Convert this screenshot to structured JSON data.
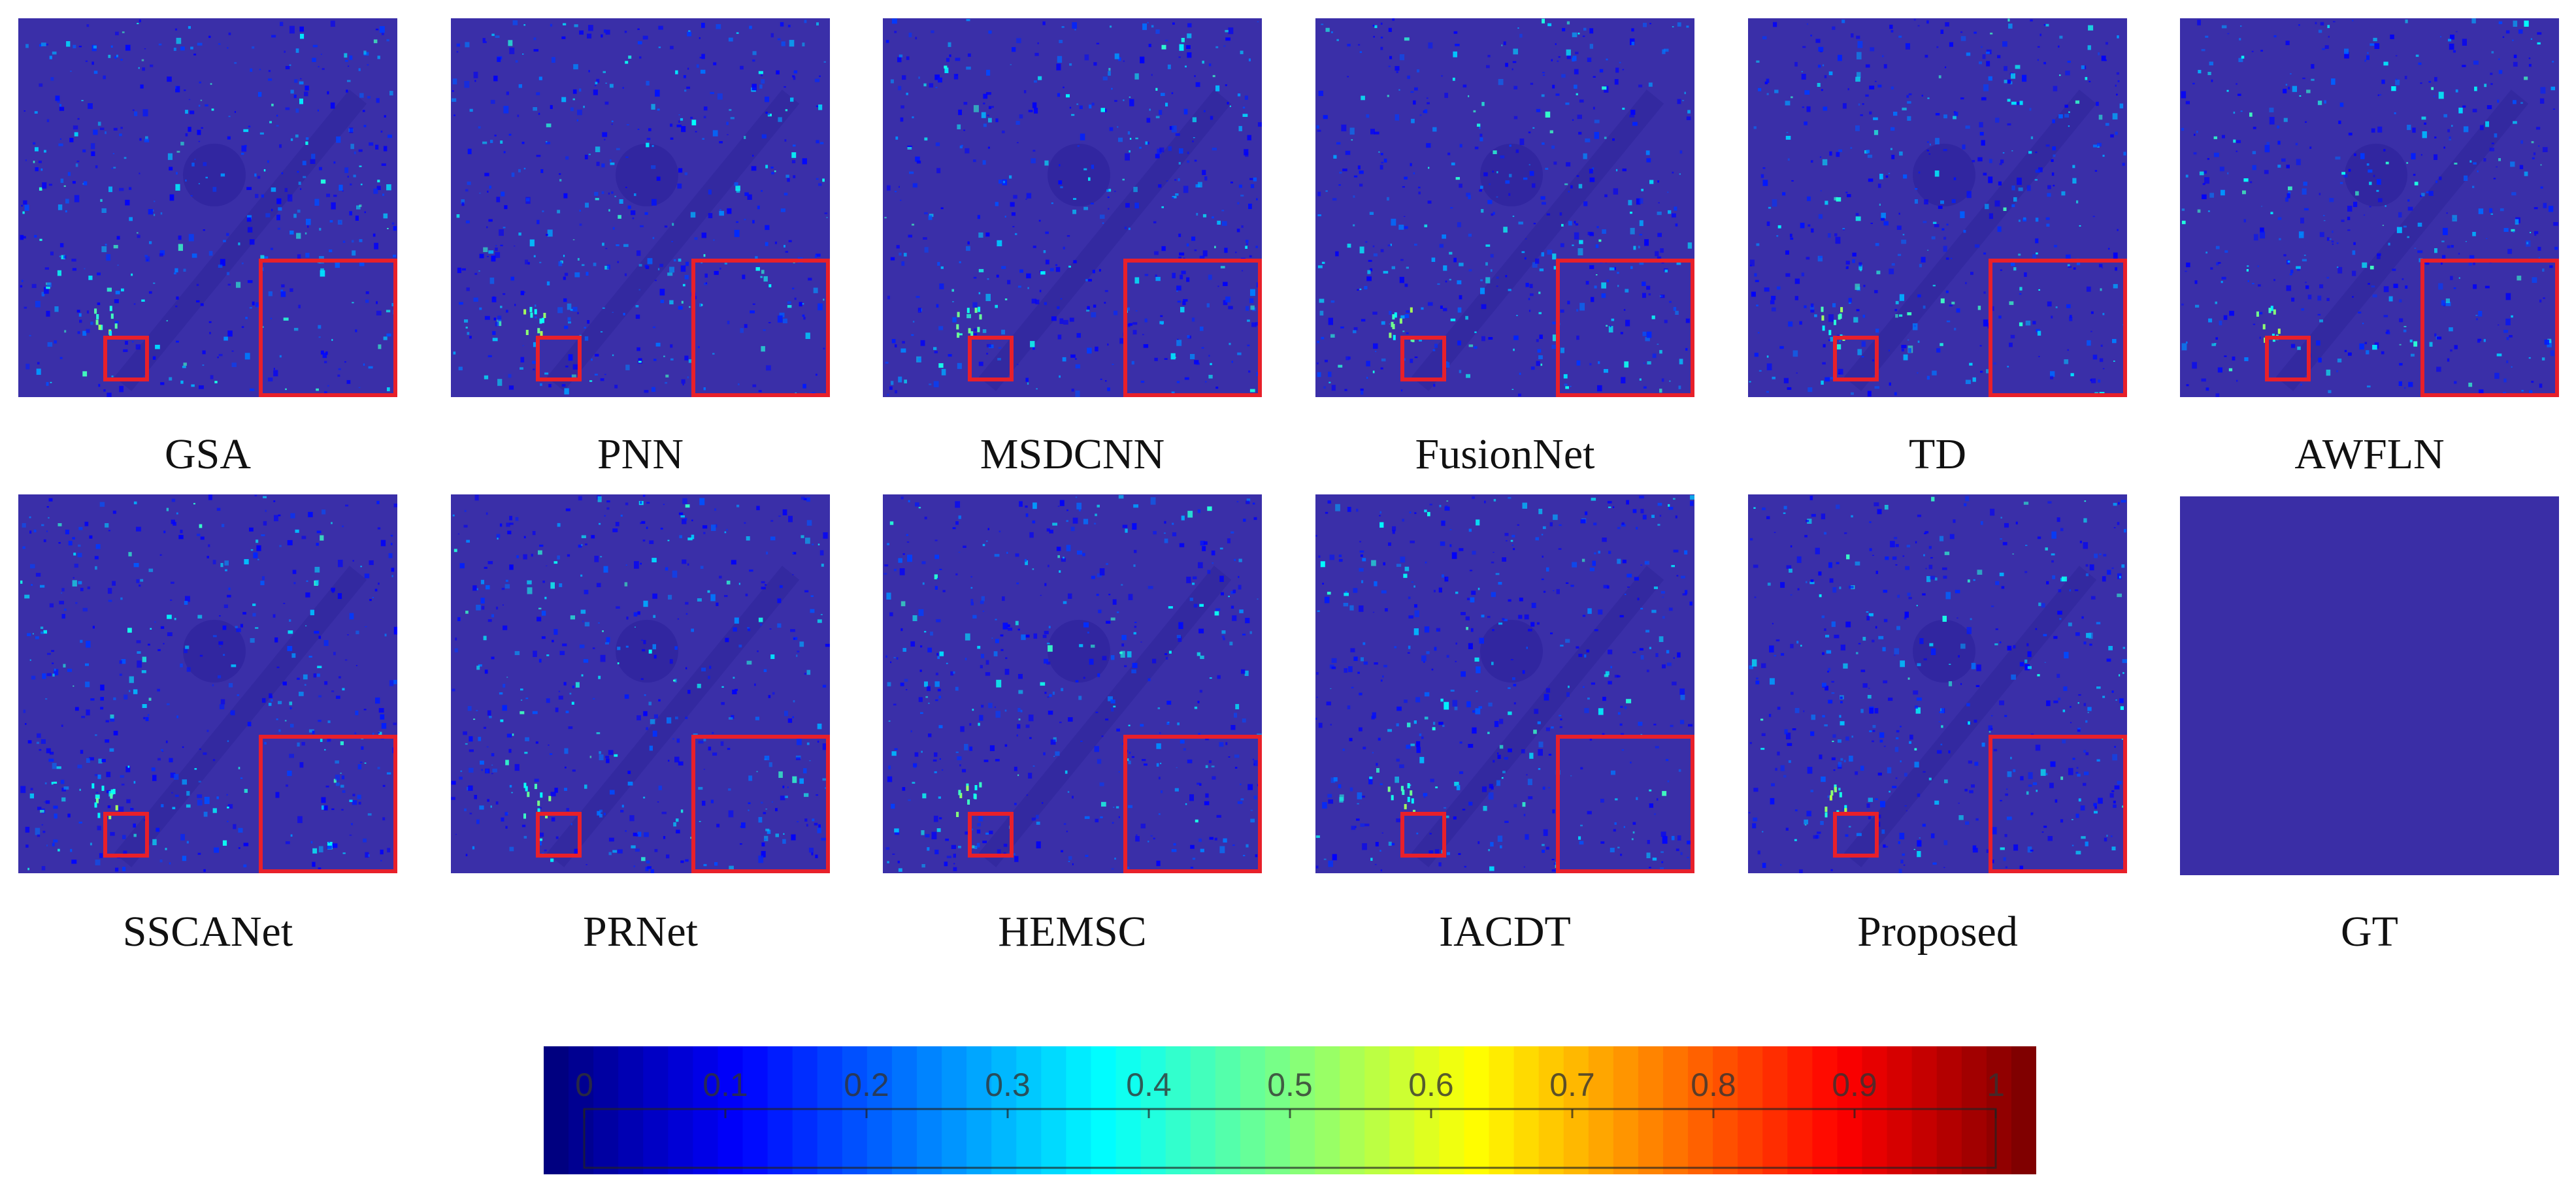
{
  "figure": {
    "panels": [
      {
        "id": "gsa",
        "label": "GSA",
        "has_zoom": true
      },
      {
        "id": "pnn",
        "label": "PNN",
        "has_zoom": true
      },
      {
        "id": "msdcnn",
        "label": "MSDCNN",
        "has_zoom": true
      },
      {
        "id": "fusionnet",
        "label": "FusionNet",
        "has_zoom": true
      },
      {
        "id": "td",
        "label": "TD",
        "has_zoom": true
      },
      {
        "id": "awfln",
        "label": "AWFLN",
        "has_zoom": true
      },
      {
        "id": "sscanet",
        "label": "SSCANet",
        "has_zoom": true
      },
      {
        "id": "prnet",
        "label": "PRNet",
        "has_zoom": true
      },
      {
        "id": "hemsc",
        "label": "HEMSC",
        "has_zoom": true
      },
      {
        "id": "iacdt",
        "label": "IACDT",
        "has_zoom": true
      },
      {
        "id": "proposed",
        "label": "Proposed",
        "has_zoom": true
      },
      {
        "id": "gt",
        "label": "GT",
        "has_zoom": false
      }
    ]
  },
  "colorbar": {
    "colormap": "jet",
    "min": 0,
    "max": 1,
    "ticks": [
      "0",
      "0.1",
      "0.2",
      "0.3",
      "0.4",
      "0.5",
      "0.6",
      "0.7",
      "0.8",
      "0.9",
      "1"
    ]
  },
  "colors": {
    "background": "#3a2fa8",
    "zoom_box": "#e8202a"
  }
}
